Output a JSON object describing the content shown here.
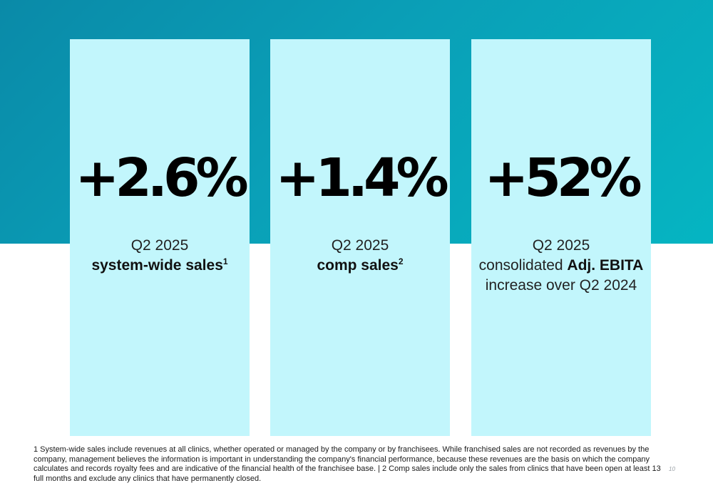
{
  "colors": {
    "band": "#0a9fb7",
    "card": "#c2f6fc",
    "metric_text": "#000000"
  },
  "cards": [
    {
      "metric": "+2.6%",
      "period": "Q2 2025",
      "label_bold": "system-wide sales",
      "footnote_ref": "1"
    },
    {
      "metric": "+1.4%",
      "period": "Q2 2025",
      "label_bold": "comp sales",
      "footnote_ref": "2"
    },
    {
      "metric": "+52%",
      "period": "Q2 2025",
      "label_prefix": "consolidated ",
      "label_bold": "Adj. EBITA",
      "label_line3": "increase over Q2 2024"
    }
  ],
  "footnote": "1 System-wide sales include revenues at all clinics, whether operated or managed by the company or by franchisees. While franchised sales are not recorded as revenues by the company, management believes the information is important  in understanding the company's financial performance, because these revenues are the basis on which the company calculates and records royalty fees and are indicative of the financial health of the franchisee base. | 2 Comp sales include only the sales from clinics that have been open at least 13 full months and exclude any clinics that have permanently closed.",
  "page_number": "10"
}
